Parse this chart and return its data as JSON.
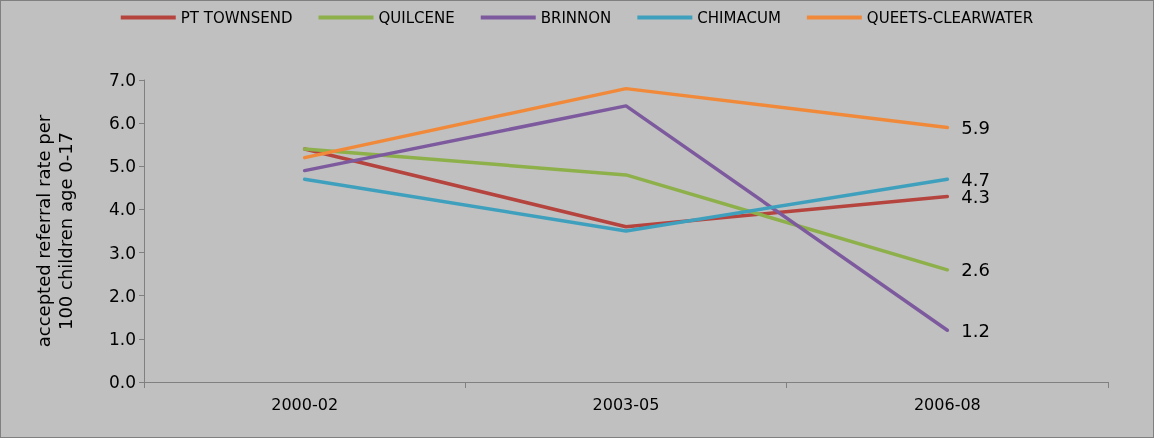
{
  "chart_data": {
    "type": "line",
    "ylabel": "accepted referral rate per 100 children age 0-17",
    "categories": [
      "2000-02",
      "2003-05",
      "2006-08"
    ],
    "series": [
      {
        "name": "PT TOWNSEND",
        "color": "#b5443f",
        "values": [
          5.4,
          3.6,
          4.3
        ],
        "value_labels": [
          null,
          null,
          "4.3"
        ]
      },
      {
        "name": "QUILCENE",
        "color": "#8db04a",
        "values": [
          5.4,
          4.8,
          2.6
        ],
        "value_labels": [
          null,
          null,
          "2.6"
        ]
      },
      {
        "name": "BRINNON",
        "color": "#7d5a9e",
        "values": [
          4.9,
          6.4,
          1.2
        ],
        "value_labels": [
          null,
          null,
          "1.2"
        ]
      },
      {
        "name": "CHIMACUM",
        "color": "#3fa0bd",
        "values": [
          4.7,
          3.5,
          4.7
        ],
        "value_labels": [
          null,
          null,
          "4.7"
        ]
      },
      {
        "name": "QUEETS-CLEARWATER",
        "color": "#f08a3a",
        "values": [
          5.2,
          6.8,
          5.9
        ],
        "value_labels": [
          null,
          null,
          "5.9"
        ]
      }
    ],
    "ylim": [
      0,
      7
    ],
    "yticks": [
      {
        "value": 0,
        "label": "0.0"
      },
      {
        "value": 1,
        "label": "1.0"
      },
      {
        "value": 2,
        "label": "2.0"
      },
      {
        "value": 3,
        "label": "3.0"
      },
      {
        "value": 4,
        "label": "4.0"
      },
      {
        "value": 5,
        "label": "5.0"
      },
      {
        "value": 6,
        "label": "6.0"
      },
      {
        "value": 7,
        "label": "7.0"
      }
    ],
    "grid": false,
    "legend": "top",
    "marker": "none",
    "line_style": "solid"
  }
}
